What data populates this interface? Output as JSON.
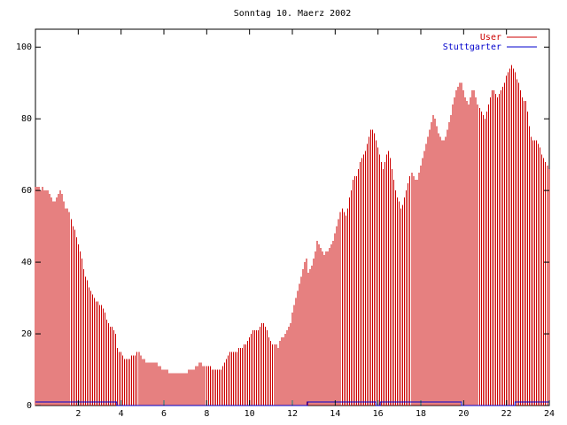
{
  "chart_data": {
    "type": "bar",
    "title": "Sonntag 10. Maerz 2002",
    "xlabel": "",
    "ylabel": "",
    "xlim": [
      0,
      24
    ],
    "ylim": [
      0,
      105
    ],
    "x_ticks": [
      "2",
      "4",
      "6",
      "8",
      "10",
      "12",
      "14",
      "16",
      "18",
      "20",
      "22",
      "24"
    ],
    "y_ticks": [
      "0",
      "20",
      "40",
      "60",
      "80",
      "100"
    ],
    "x_tick_values": [
      2,
      4,
      6,
      8,
      10,
      12,
      14,
      16,
      18,
      20,
      22,
      24
    ],
    "y_tick_values": [
      0,
      20,
      40,
      60,
      80,
      100
    ],
    "grid": false,
    "legend_position": "top-right",
    "series": [
      {
        "name": "User",
        "color": "#cc0000",
        "style": "impulses",
        "x_step_hours": 0.0833,
        "values": [
          61,
          61,
          61,
          60,
          61,
          60,
          60,
          60,
          59,
          58,
          57,
          57,
          58,
          59,
          60,
          59,
          57,
          55,
          55,
          54,
          52,
          50,
          49,
          47,
          45,
          43,
          41,
          38,
          36,
          35,
          33,
          32,
          31,
          30,
          29,
          29,
          28,
          28,
          27,
          26,
          24,
          23,
          22,
          22,
          21,
          20,
          16,
          15,
          15,
          14,
          13,
          13,
          13,
          13,
          14,
          14,
          14,
          15,
          15,
          14,
          13,
          13,
          12,
          12,
          12,
          12,
          12,
          12,
          12,
          11,
          11,
          10,
          10,
          10,
          10,
          9,
          9,
          9,
          9,
          9,
          9,
          9,
          9,
          9,
          9,
          9,
          10,
          10,
          10,
          10,
          11,
          11,
          12,
          12,
          11,
          11,
          11,
          11,
          11,
          10,
          10,
          10,
          10,
          10,
          10,
          11,
          12,
          13,
          14,
          15,
          15,
          15,
          15,
          15,
          16,
          16,
          16,
          17,
          17,
          18,
          19,
          20,
          21,
          21,
          21,
          21,
          22,
          23,
          23,
          22,
          21,
          19,
          18,
          17,
          17,
          17,
          16,
          18,
          19,
          19,
          20,
          21,
          22,
          23,
          26,
          28,
          30,
          32,
          34,
          36,
          38,
          40,
          41,
          37,
          38,
          39,
          41,
          43,
          46,
          45,
          44,
          43,
          42,
          43,
          43,
          44,
          45,
          46,
          48,
          50,
          52,
          54,
          55,
          54,
          53,
          55,
          58,
          60,
          63,
          64,
          64,
          66,
          68,
          69,
          70,
          71,
          73,
          75,
          77,
          77,
          76,
          74,
          72,
          70,
          68,
          66,
          68,
          70,
          71,
          69,
          66,
          63,
          60,
          58,
          57,
          55,
          56,
          58,
          60,
          62,
          64,
          65,
          64,
          63,
          63,
          65,
          67,
          69,
          71,
          73,
          75,
          77,
          79,
          81,
          80,
          78,
          76,
          75,
          74,
          74,
          75,
          77,
          79,
          81,
          84,
          86,
          88,
          89,
          90,
          90,
          88,
          86,
          85,
          84,
          86,
          88,
          88,
          86,
          84,
          83,
          82,
          81,
          80,
          82,
          84,
          86,
          88,
          88,
          87,
          86,
          87,
          88,
          89,
          90,
          92,
          93,
          94,
          95,
          94,
          93,
          91,
          90,
          88,
          86,
          85,
          85,
          82,
          78,
          75,
          74,
          74,
          74,
          73,
          72,
          70,
          69,
          68,
          67,
          66,
          65,
          64,
          63,
          62,
          62
        ]
      },
      {
        "name": "Stuttgarter",
        "color": "#0000cc",
        "style": "lines",
        "points": [
          [
            0,
            1
          ],
          [
            3.8,
            1
          ],
          [
            3.8,
            0
          ],
          [
            12.7,
            0
          ],
          [
            12.7,
            1
          ],
          [
            15.9,
            1
          ],
          [
            15.9,
            0
          ],
          [
            16.1,
            0
          ],
          [
            16.1,
            1
          ],
          [
            19.9,
            1
          ],
          [
            19.9,
            0
          ],
          [
            22.4,
            0
          ],
          [
            22.4,
            1
          ],
          [
            24,
            1
          ]
        ]
      }
    ]
  }
}
